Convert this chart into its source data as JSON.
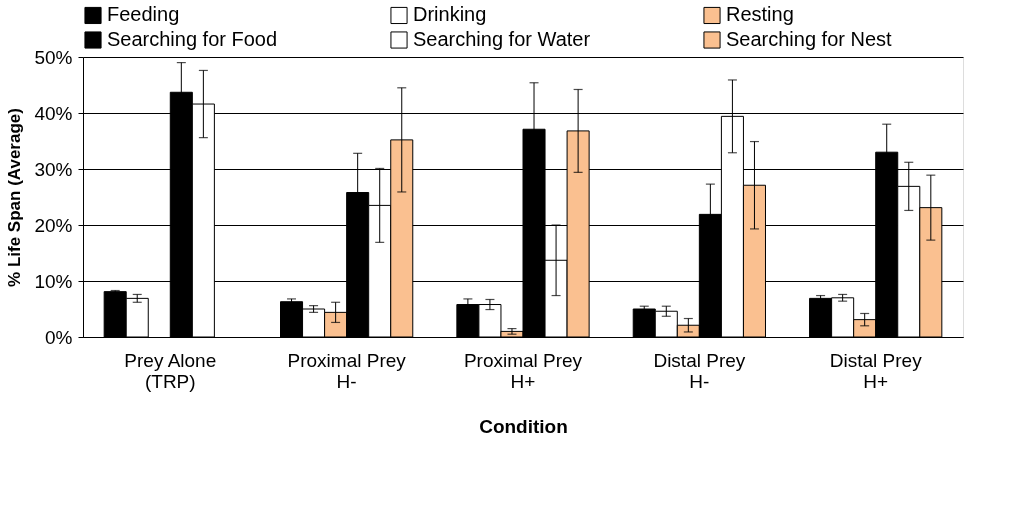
{
  "chart_data": {
    "type": "bar",
    "categories": [
      "Prey Alone\n(TRP)",
      "Proximal Prey\nH-",
      "Proximal Prey\nH+",
      "Distal Prey\nH-",
      "Distal Prey\nH+"
    ],
    "xlabel": "Condition",
    "ylabel": "% Life Span (Average)",
    "ylim": [
      0,
      50
    ],
    "yticks": [
      {
        "value": 0,
        "label": "0%"
      },
      {
        "value": 10,
        "label": "10%"
      },
      {
        "value": 20,
        "label": "20%"
      },
      {
        "value": 30,
        "label": "30%"
      },
      {
        "value": 40,
        "label": "40%"
      },
      {
        "value": 50,
        "label": "50%"
      }
    ],
    "grid": "y",
    "legend": "top",
    "series": [
      {
        "name": "Feeding",
        "color": "#000000",
        "values": [
          8.1,
          6.3,
          5.8,
          5.0,
          6.9
        ],
        "errors": [
          0.2,
          0.5,
          1.0,
          0.5,
          0.5
        ]
      },
      {
        "name": "Drinking",
        "color": "#ffffff",
        "values": [
          6.9,
          5.0,
          5.8,
          4.6,
          7.0
        ],
        "errors": [
          0.7,
          0.6,
          0.9,
          0.9,
          0.6
        ]
      },
      {
        "name": "Resting",
        "color": "#fac090",
        "values": [
          null,
          4.4,
          1.0,
          2.1,
          3.1
        ],
        "errors": [
          null,
          1.8,
          0.5,
          1.2,
          1.1
        ]
      },
      {
        "name": "Searching for Food",
        "color": "#000000",
        "values": [
          43.7,
          25.8,
          37.1,
          21.9,
          33.0
        ],
        "errors": [
          5.3,
          7.0,
          8.3,
          5.4,
          5.0
        ]
      },
      {
        "name": "Searching for Water",
        "color": "#ffffff",
        "values": [
          41.6,
          23.5,
          13.7,
          39.4,
          26.9
        ],
        "errors": [
          6.0,
          6.6,
          6.3,
          6.5,
          4.3
        ]
      },
      {
        "name": "Searching for Nest",
        "color": "#fac090",
        "values": [
          null,
          35.2,
          36.8,
          27.1,
          23.1
        ],
        "errors": [
          null,
          9.3,
          7.4,
          7.8,
          5.8
        ]
      }
    ]
  }
}
